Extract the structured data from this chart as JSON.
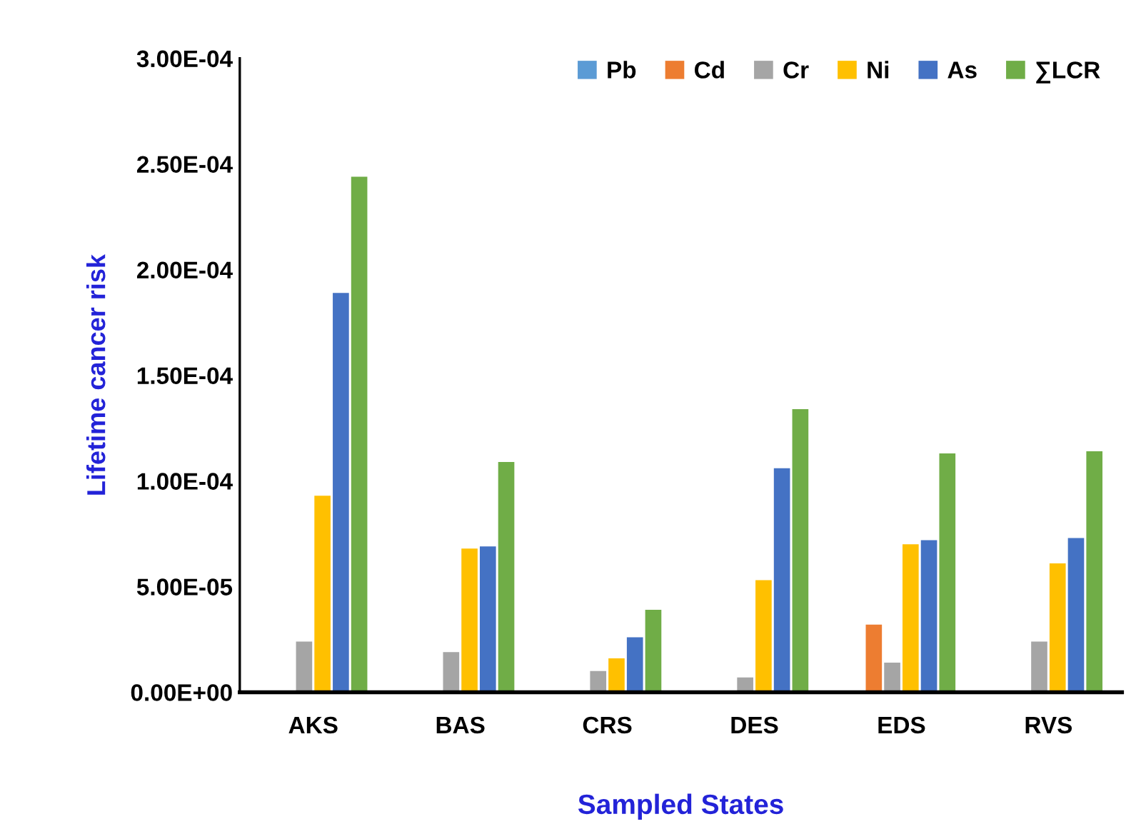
{
  "chart_data": {
    "type": "bar",
    "xlabel": "Sampled States",
    "ylabel": "Lifetime cancer risk",
    "categories": [
      "AKS",
      "BAS",
      "CRS",
      "DES",
      "EDS",
      "RVS"
    ],
    "series": [
      {
        "name": "Pb",
        "color": "#5b9bd5",
        "values": [
          0,
          0,
          0,
          0,
          0,
          0
        ]
      },
      {
        "name": "Cd",
        "color": "#ed7d31",
        "values": [
          0,
          0,
          0,
          0,
          3.2e-05,
          0
        ]
      },
      {
        "name": "Cr",
        "color": "#a5a5a5",
        "values": [
          2.4e-05,
          1.9e-05,
          1e-05,
          7e-06,
          1.4e-05,
          2.4e-05
        ]
      },
      {
        "name": "Ni",
        "color": "#ffc000",
        "values": [
          9.3e-05,
          6.8e-05,
          1.6e-05,
          5.3e-05,
          7e-05,
          6.1e-05
        ]
      },
      {
        "name": "As",
        "color": "#4472c4",
        "values": [
          0.000189,
          6.9e-05,
          2.6e-05,
          0.000106,
          7.2e-05,
          7.3e-05
        ]
      },
      {
        "name": "∑LCR",
        "color": "#70ad47",
        "values": [
          0.000244,
          0.000109,
          3.9e-05,
          0.000134,
          0.000113,
          0.000114
        ]
      }
    ],
    "ylim": [
      0,
      0.0003
    ],
    "yticks": [
      {
        "value": 0,
        "label": "0.00E+00"
      },
      {
        "value": 5e-05,
        "label": "5.00E-05"
      },
      {
        "value": 0.0001,
        "label": "1.00E-04"
      },
      {
        "value": 0.00015,
        "label": "1.50E-04"
      },
      {
        "value": 0.0002,
        "label": "2.00E-04"
      },
      {
        "value": 0.00025,
        "label": "2.50E-04"
      },
      {
        "value": 0.0003,
        "label": "3.00E-04"
      }
    ],
    "grid": false,
    "legend": "top right"
  }
}
